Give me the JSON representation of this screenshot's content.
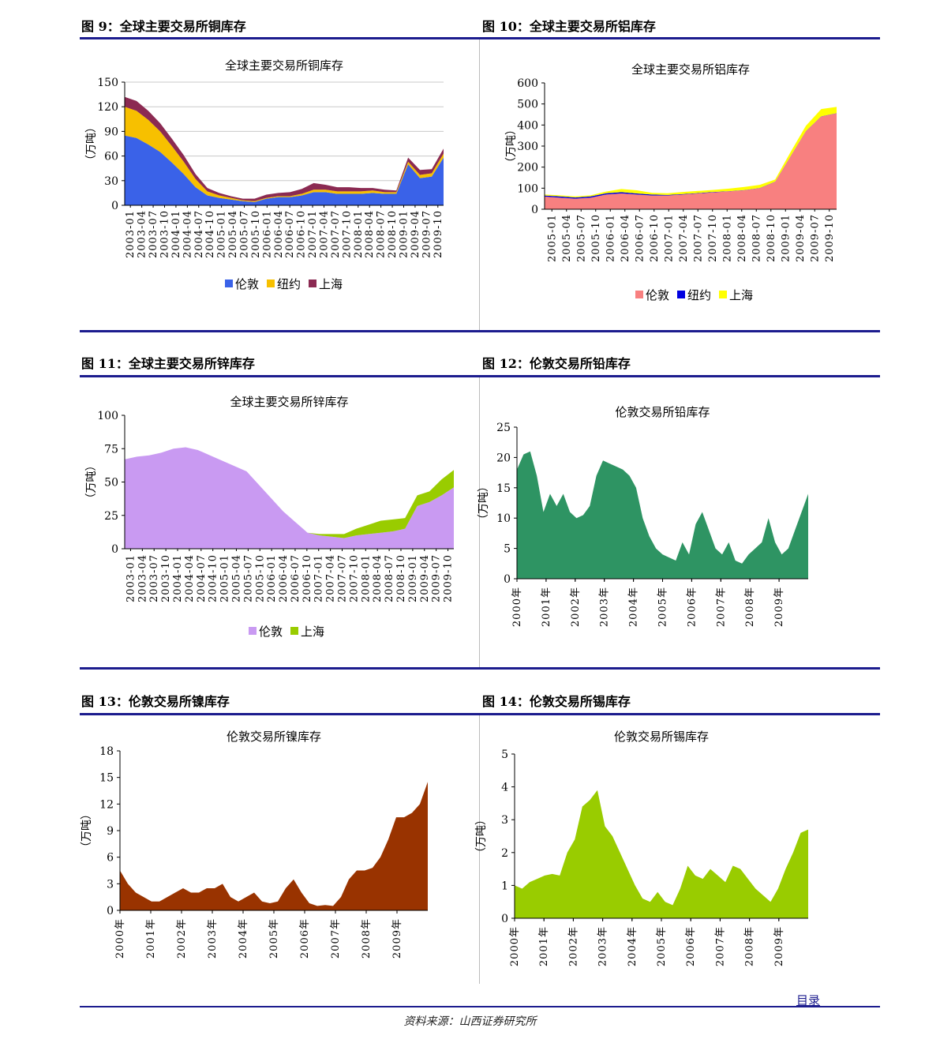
{
  "colors": {
    "rule": "#1c1c8e",
    "london_copper": "#3a62e8",
    "ny_copper": "#f7c000",
    "sh_copper": "#8b2a52",
    "london_al": "#f88080",
    "ny_al": "#0000e0",
    "sh_al": "#ffff00",
    "london_zn": "#c99af2",
    "sh_zn": "#99cc00",
    "lead": "#2e9463",
    "nickel": "#993300",
    "tin": "#99cc00"
  },
  "figures": [
    {
      "id": "fig9",
      "caption": "图 9：全球主要交易所铜库存",
      "chart_data": {
        "type": "area",
        "stacked": true,
        "title": "全球主要交易所铜库存",
        "ylabel": "（万吨）",
        "ylim": [
          0,
          150
        ],
        "yticks": [
          "150",
          "120",
          "90",
          "60",
          "30",
          "0"
        ],
        "xticks": [
          "2003-01",
          "2003-04",
          "2003-07",
          "2003-10",
          "2004-01",
          "2004-04",
          "2004-07",
          "2004-10",
          "2005-01",
          "2005-04",
          "2005-07",
          "2005-10",
          "2006-01",
          "2006-04",
          "2006-07",
          "2006-10",
          "2007-01",
          "2007-04",
          "2007-07",
          "2007-10",
          "2008-01",
          "2008-04",
          "2008-07",
          "2008-10",
          "2009-01",
          "2009-04",
          "2009-07",
          "2009-10"
        ],
        "legend": [
          "伦敦",
          "纽约",
          "上海"
        ],
        "series": [
          {
            "name": "伦敦",
            "values": [
              85,
              82,
              74,
              65,
              52,
              38,
              22,
              12,
              9,
              7,
              5,
              4,
              8,
              10,
              10,
              12,
              16,
              16,
              14,
              14,
              14,
              15,
              14,
              14,
              50,
              33,
              35,
              58
            ]
          },
          {
            "name": "纽约",
            "values": [
              35,
              33,
              30,
              25,
              20,
              15,
              10,
              5,
              3,
              2,
              1,
              1,
              1,
              1,
              1,
              2,
              3,
              3,
              3,
              3,
              3,
              3,
              2,
              2,
              3,
              4,
              4,
              5
            ]
          },
          {
            "name": "上海",
            "values": [
              12,
              12,
              11,
              10,
              9,
              8,
              6,
              4,
              3,
              2,
              2,
              3,
              4,
              4,
              5,
              6,
              8,
              6,
              5,
              5,
              4,
              3,
              3,
              2,
              5,
              6,
              5,
              6
            ]
          }
        ]
      }
    },
    {
      "id": "fig10",
      "caption": "图 10：全球主要交易所铝库存",
      "chart_data": {
        "type": "area",
        "stacked": true,
        "title": "全球主要交易所铝库存",
        "ylabel": "（万吨）",
        "ylim": [
          0,
          600
        ],
        "yticks": [
          "600",
          "500",
          "400",
          "300",
          "200",
          "100",
          "0"
        ],
        "xticks": [
          "2005-01",
          "2005-04",
          "2005-07",
          "2005-10",
          "2006-01",
          "2006-04",
          "2006-07",
          "2006-10",
          "2007-01",
          "2007-04",
          "2007-07",
          "2007-10",
          "2008-01",
          "2008-04",
          "2008-07",
          "2008-10",
          "2009-01",
          "2009-04",
          "2009-07",
          "2009-10"
        ],
        "legend": [
          "伦敦",
          "纽约",
          "上海"
        ],
        "series": [
          {
            "name": "伦敦",
            "values": [
              60,
              55,
              50,
              55,
              70,
              75,
              70,
              65,
              65,
              70,
              75,
              80,
              85,
              90,
              100,
              130,
              250,
              370,
              440,
              455
            ]
          },
          {
            "name": "纽约",
            "values": [
              5,
              6,
              6,
              6,
              6,
              6,
              5,
              5,
              3,
              2,
              2,
              2,
              1,
              1,
              1,
              1,
              1,
              1,
              1,
              1
            ]
          },
          {
            "name": "上海",
            "values": [
              5,
              5,
              5,
              5,
              8,
              15,
              15,
              8,
              8,
              10,
              10,
              10,
              12,
              15,
              15,
              10,
              20,
              25,
              35,
              30
            ]
          }
        ]
      }
    },
    {
      "id": "fig11",
      "caption": "图 11：全球主要交易所锌库存",
      "chart_data": {
        "type": "area",
        "stacked": true,
        "title": "全球主要交易所锌库存",
        "ylabel": "（万吨）",
        "ylim": [
          0,
          100
        ],
        "yticks": [
          "100",
          "75",
          "50",
          "25",
          "0"
        ],
        "xticks": [
          "2003-01",
          "2003-04",
          "2003-07",
          "2003-10",
          "2004-01",
          "2004-04",
          "2004-07",
          "2004-10",
          "2005-01",
          "2005-04",
          "2005-07",
          "2005-10",
          "2006-01",
          "2006-04",
          "2006-07",
          "2006-10",
          "2007-01",
          "2007-04",
          "2007-07",
          "2007-10",
          "2008-01",
          "2008-04",
          "2008-07",
          "2008-10",
          "2009-01",
          "2009-04",
          "2009-07",
          "2009-10"
        ],
        "legend": [
          "伦敦",
          "上海"
        ],
        "series": [
          {
            "name": "伦敦",
            "values": [
              67,
              69,
              70,
              72,
              75,
              76,
              74,
              70,
              66,
              62,
              58,
              48,
              38,
              28,
              20,
              12,
              10,
              9,
              8,
              10,
              11,
              12,
              13,
              15,
              32,
              35,
              40,
              46
            ]
          },
          {
            "name": "上海",
            "values": [
              0,
              0,
              0,
              0,
              0,
              0,
              0,
              0,
              0,
              0,
              0,
              0,
              0,
              0,
              0,
              0,
              1,
              2,
              3,
              5,
              7,
              9,
              9,
              8,
              8,
              8,
              12,
              13
            ]
          }
        ]
      }
    },
    {
      "id": "fig12",
      "caption": "图 12：伦敦交易所铅库存",
      "chart_data": {
        "type": "area",
        "title": "伦敦交易所铅库存",
        "ylabel": "（万吨）",
        "ylim": [
          0,
          25
        ],
        "yticks": [
          "25",
          "20",
          "15",
          "10",
          "5",
          "0"
        ],
        "xticks": [
          "2000年",
          "2001年",
          "2002年",
          "2003年",
          "2004年",
          "2005年",
          "2006年",
          "2007年",
          "2008年",
          "2009年"
        ],
        "x_start": 2000,
        "x_end": 2010,
        "values": [
          18,
          20.5,
          21,
          17,
          11,
          14,
          12,
          14,
          11,
          10,
          10.5,
          12,
          17,
          19.5,
          19,
          18.5,
          18,
          17,
          15,
          10,
          7,
          5,
          4,
          3.5,
          3,
          6,
          4,
          9,
          11,
          8,
          5,
          4,
          6,
          3,
          2.5,
          4,
          5,
          6,
          10,
          6,
          4,
          5,
          8,
          11,
          14
        ]
      }
    },
    {
      "id": "fig13",
      "caption": "图 13：伦敦交易所镍库存",
      "chart_data": {
        "type": "area",
        "title": "伦敦交易所镍库存",
        "ylabel": "（万吨）",
        "ylim": [
          0,
          18
        ],
        "yticks": [
          "18",
          "15",
          "12",
          "9",
          "6",
          "3",
          "0"
        ],
        "xticks": [
          "2000年",
          "2001年",
          "2002年",
          "2003年",
          "2004年",
          "2005年",
          "2006年",
          "2007年",
          "2008年",
          "2009年"
        ],
        "x_start": 2000,
        "x_end": 2010,
        "values": [
          4.5,
          3,
          2,
          1.5,
          1,
          1,
          1.5,
          2,
          2.5,
          2,
          2,
          2.5,
          2.5,
          3,
          1.5,
          1,
          1.5,
          2,
          1,
          0.8,
          1,
          2.5,
          3.5,
          2,
          0.8,
          0.5,
          0.6,
          0.5,
          1.5,
          3.5,
          4.5,
          4.5,
          4.8,
          6,
          8,
          10.5,
          10.5,
          11,
          12,
          14.5
        ]
      }
    },
    {
      "id": "fig14",
      "caption": "图 14：伦敦交易所锡库存",
      "chart_data": {
        "type": "area",
        "title": "伦敦交易所锡库存",
        "ylabel": "（万吨）",
        "ylim": [
          0,
          5
        ],
        "yticks": [
          "5",
          "4",
          "3",
          "2",
          "1",
          "0"
        ],
        "xticks": [
          "2000年",
          "2001年",
          "2002年",
          "2003年",
          "2004年",
          "2005年",
          "2006年",
          "2007年",
          "2008年",
          "2009年"
        ],
        "x_start": 2000,
        "x_end": 2010,
        "values": [
          1,
          0.9,
          1.1,
          1.2,
          1.3,
          1.35,
          1.3,
          2,
          2.4,
          3.4,
          3.6,
          3.9,
          2.8,
          2.5,
          2,
          1.5,
          1,
          0.6,
          0.5,
          0.8,
          0.5,
          0.4,
          0.9,
          1.6,
          1.3,
          1.2,
          1.5,
          1.3,
          1.1,
          1.6,
          1.5,
          1.2,
          0.9,
          0.7,
          0.5,
          0.9,
          1.5,
          2,
          2.6,
          2.7
        ]
      }
    }
  ],
  "footer": {
    "toc_link": "目录",
    "source": "资料来源：山西证券研究所"
  }
}
